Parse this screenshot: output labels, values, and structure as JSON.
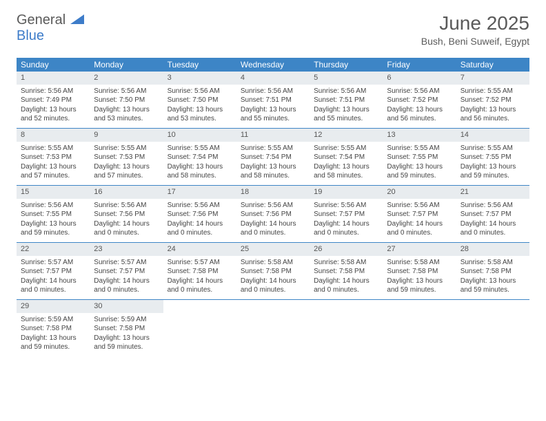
{
  "logo": {
    "general": "General",
    "blue": "Blue"
  },
  "title": "June 2025",
  "location": "Bush, Beni Suweif, Egypt",
  "colors": {
    "header_bg": "#3d85c6",
    "daybar_bg": "#e8ecef",
    "border": "#3d85c6",
    "text": "#444444"
  },
  "weekdays": [
    "Sunday",
    "Monday",
    "Tuesday",
    "Wednesday",
    "Thursday",
    "Friday",
    "Saturday"
  ],
  "weeks": [
    [
      {
        "num": "1",
        "sunrise": "Sunrise: 5:56 AM",
        "sunset": "Sunset: 7:49 PM",
        "daylight": "Daylight: 13 hours and 52 minutes."
      },
      {
        "num": "2",
        "sunrise": "Sunrise: 5:56 AM",
        "sunset": "Sunset: 7:50 PM",
        "daylight": "Daylight: 13 hours and 53 minutes."
      },
      {
        "num": "3",
        "sunrise": "Sunrise: 5:56 AM",
        "sunset": "Sunset: 7:50 PM",
        "daylight": "Daylight: 13 hours and 53 minutes."
      },
      {
        "num": "4",
        "sunrise": "Sunrise: 5:56 AM",
        "sunset": "Sunset: 7:51 PM",
        "daylight": "Daylight: 13 hours and 55 minutes."
      },
      {
        "num": "5",
        "sunrise": "Sunrise: 5:56 AM",
        "sunset": "Sunset: 7:51 PM",
        "daylight": "Daylight: 13 hours and 55 minutes."
      },
      {
        "num": "6",
        "sunrise": "Sunrise: 5:56 AM",
        "sunset": "Sunset: 7:52 PM",
        "daylight": "Daylight: 13 hours and 56 minutes."
      },
      {
        "num": "7",
        "sunrise": "Sunrise: 5:55 AM",
        "sunset": "Sunset: 7:52 PM",
        "daylight": "Daylight: 13 hours and 56 minutes."
      }
    ],
    [
      {
        "num": "8",
        "sunrise": "Sunrise: 5:55 AM",
        "sunset": "Sunset: 7:53 PM",
        "daylight": "Daylight: 13 hours and 57 minutes."
      },
      {
        "num": "9",
        "sunrise": "Sunrise: 5:55 AM",
        "sunset": "Sunset: 7:53 PM",
        "daylight": "Daylight: 13 hours and 57 minutes."
      },
      {
        "num": "10",
        "sunrise": "Sunrise: 5:55 AM",
        "sunset": "Sunset: 7:54 PM",
        "daylight": "Daylight: 13 hours and 58 minutes."
      },
      {
        "num": "11",
        "sunrise": "Sunrise: 5:55 AM",
        "sunset": "Sunset: 7:54 PM",
        "daylight": "Daylight: 13 hours and 58 minutes."
      },
      {
        "num": "12",
        "sunrise": "Sunrise: 5:55 AM",
        "sunset": "Sunset: 7:54 PM",
        "daylight": "Daylight: 13 hours and 58 minutes."
      },
      {
        "num": "13",
        "sunrise": "Sunrise: 5:55 AM",
        "sunset": "Sunset: 7:55 PM",
        "daylight": "Daylight: 13 hours and 59 minutes."
      },
      {
        "num": "14",
        "sunrise": "Sunrise: 5:55 AM",
        "sunset": "Sunset: 7:55 PM",
        "daylight": "Daylight: 13 hours and 59 minutes."
      }
    ],
    [
      {
        "num": "15",
        "sunrise": "Sunrise: 5:56 AM",
        "sunset": "Sunset: 7:55 PM",
        "daylight": "Daylight: 13 hours and 59 minutes."
      },
      {
        "num": "16",
        "sunrise": "Sunrise: 5:56 AM",
        "sunset": "Sunset: 7:56 PM",
        "daylight": "Daylight: 14 hours and 0 minutes."
      },
      {
        "num": "17",
        "sunrise": "Sunrise: 5:56 AM",
        "sunset": "Sunset: 7:56 PM",
        "daylight": "Daylight: 14 hours and 0 minutes."
      },
      {
        "num": "18",
        "sunrise": "Sunrise: 5:56 AM",
        "sunset": "Sunset: 7:56 PM",
        "daylight": "Daylight: 14 hours and 0 minutes."
      },
      {
        "num": "19",
        "sunrise": "Sunrise: 5:56 AM",
        "sunset": "Sunset: 7:57 PM",
        "daylight": "Daylight: 14 hours and 0 minutes."
      },
      {
        "num": "20",
        "sunrise": "Sunrise: 5:56 AM",
        "sunset": "Sunset: 7:57 PM",
        "daylight": "Daylight: 14 hours and 0 minutes."
      },
      {
        "num": "21",
        "sunrise": "Sunrise: 5:56 AM",
        "sunset": "Sunset: 7:57 PM",
        "daylight": "Daylight: 14 hours and 0 minutes."
      }
    ],
    [
      {
        "num": "22",
        "sunrise": "Sunrise: 5:57 AM",
        "sunset": "Sunset: 7:57 PM",
        "daylight": "Daylight: 14 hours and 0 minutes."
      },
      {
        "num": "23",
        "sunrise": "Sunrise: 5:57 AM",
        "sunset": "Sunset: 7:57 PM",
        "daylight": "Daylight: 14 hours and 0 minutes."
      },
      {
        "num": "24",
        "sunrise": "Sunrise: 5:57 AM",
        "sunset": "Sunset: 7:58 PM",
        "daylight": "Daylight: 14 hours and 0 minutes."
      },
      {
        "num": "25",
        "sunrise": "Sunrise: 5:58 AM",
        "sunset": "Sunset: 7:58 PM",
        "daylight": "Daylight: 14 hours and 0 minutes."
      },
      {
        "num": "26",
        "sunrise": "Sunrise: 5:58 AM",
        "sunset": "Sunset: 7:58 PM",
        "daylight": "Daylight: 14 hours and 0 minutes."
      },
      {
        "num": "27",
        "sunrise": "Sunrise: 5:58 AM",
        "sunset": "Sunset: 7:58 PM",
        "daylight": "Daylight: 13 hours and 59 minutes."
      },
      {
        "num": "28",
        "sunrise": "Sunrise: 5:58 AM",
        "sunset": "Sunset: 7:58 PM",
        "daylight": "Daylight: 13 hours and 59 minutes."
      }
    ],
    [
      {
        "num": "29",
        "sunrise": "Sunrise: 5:59 AM",
        "sunset": "Sunset: 7:58 PM",
        "daylight": "Daylight: 13 hours and 59 minutes."
      },
      {
        "num": "30",
        "sunrise": "Sunrise: 5:59 AM",
        "sunset": "Sunset: 7:58 PM",
        "daylight": "Daylight: 13 hours and 59 minutes."
      },
      null,
      null,
      null,
      null,
      null
    ]
  ]
}
